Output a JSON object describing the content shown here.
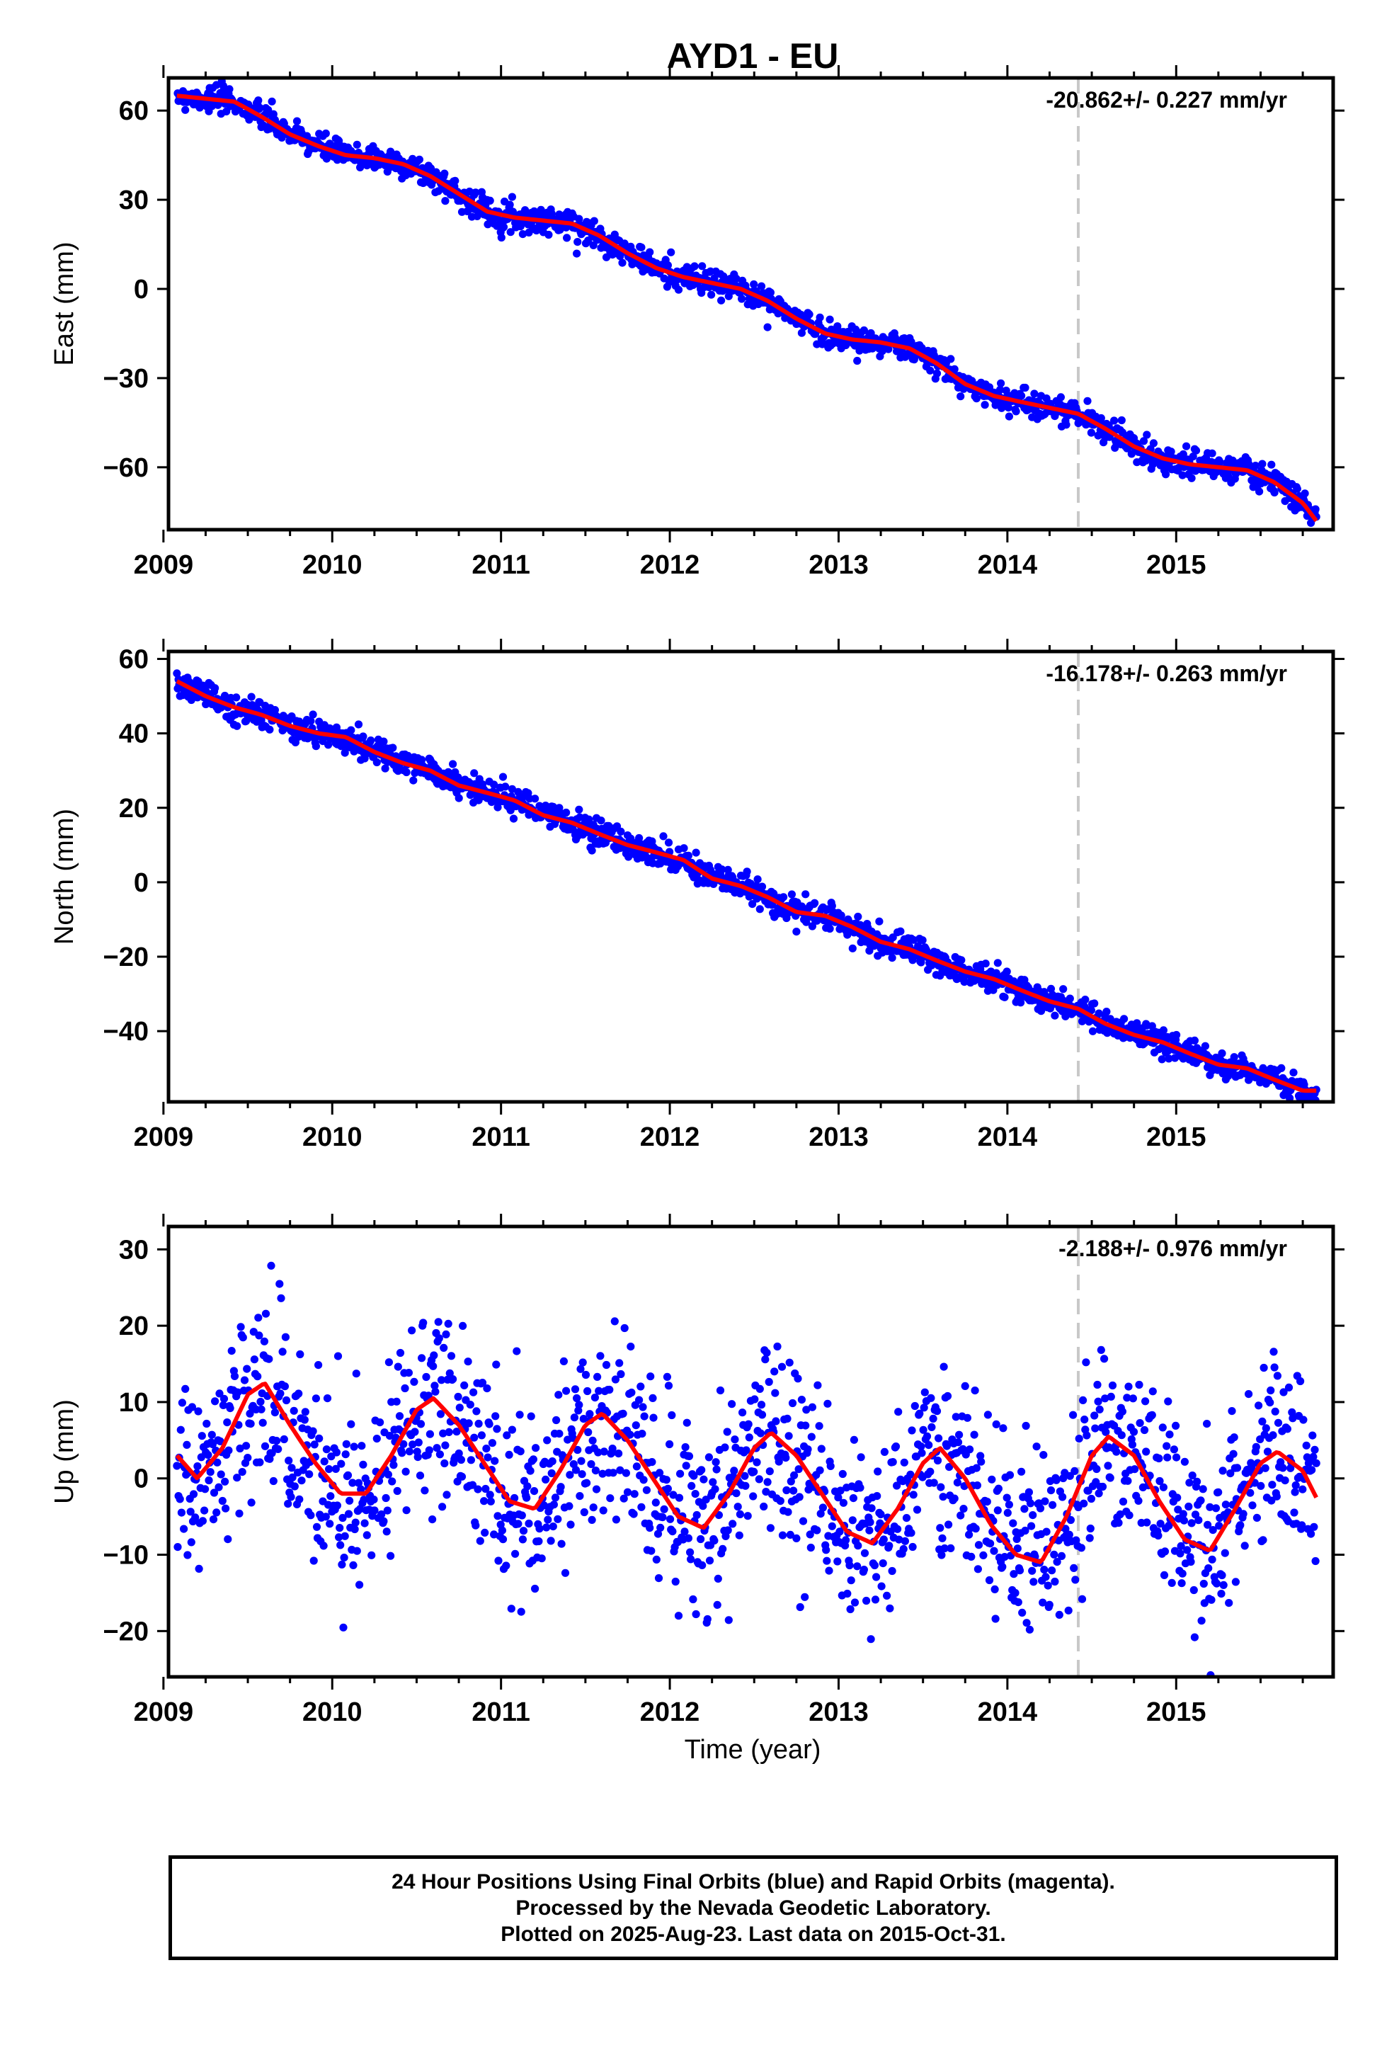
{
  "title": "AYD1 - EU",
  "colors": {
    "points": "#0000ff",
    "fit": "#ff0000",
    "event_line": "#c8c8c8",
    "frame": "#000000"
  },
  "x_axis": {
    "xlabel": "Time (year)",
    "ticks": [
      2009,
      2010,
      2011,
      2012,
      2013,
      2014,
      2015
    ],
    "xlim": [
      2009.03,
      2015.93
    ]
  },
  "event_line_year": 2014.42,
  "footer": {
    "line1": "24 Hour Positions Using Final Orbits (blue) and Rapid Orbits (magenta).",
    "line2": "Processed by the Nevada Geodetic Laboratory.",
    "line3": "Plotted on 2025-Aug-23. Last data on 2015-Oct-31."
  },
  "chart_data": [
    {
      "type": "scatter",
      "component": "east",
      "ylabel": "East (mm)",
      "rate_label": "-20.862+/- 0.227 mm/yr",
      "ylim": [
        -81,
        71
      ],
      "yticks": [
        -60,
        -30,
        0,
        30,
        60
      ],
      "x": [
        2009.08,
        2009.25,
        2009.42,
        2009.58,
        2009.75,
        2009.92,
        2010.08,
        2010.25,
        2010.42,
        2010.58,
        2010.75,
        2010.92,
        2011.08,
        2011.25,
        2011.42,
        2011.58,
        2011.75,
        2011.92,
        2012.08,
        2012.25,
        2012.42,
        2012.58,
        2012.75,
        2012.92,
        2013.08,
        2013.25,
        2013.42,
        2013.58,
        2013.75,
        2013.92,
        2014.08,
        2014.25,
        2014.42,
        2014.58,
        2014.75,
        2014.92,
        2015.08,
        2015.25,
        2015.42,
        2015.58,
        2015.75,
        2015.83
      ],
      "fit": [
        65,
        64,
        63,
        58,
        52,
        48,
        45,
        44,
        42,
        38,
        32,
        26,
        24,
        23,
        22,
        18,
        12,
        7,
        4,
        2,
        0,
        -4,
        -10,
        -15,
        -17,
        -18,
        -20,
        -25,
        -32,
        -36,
        -38,
        -40,
        -42,
        -47,
        -53,
        -57,
        -59,
        -60,
        -61,
        -65,
        -72,
        -78
      ],
      "noise": 2.2
    },
    {
      "type": "scatter",
      "component": "north",
      "ylabel": "North (mm)",
      "rate_label": "-16.178+/- 0.263 mm/yr",
      "ylim": [
        -59,
        62
      ],
      "yticks": [
        -40,
        -20,
        0,
        20,
        40,
        60
      ],
      "x": [
        2009.08,
        2009.25,
        2009.42,
        2009.58,
        2009.75,
        2009.92,
        2010.08,
        2010.25,
        2010.42,
        2010.58,
        2010.75,
        2010.92,
        2011.08,
        2011.25,
        2011.42,
        2011.58,
        2011.75,
        2011.92,
        2012.08,
        2012.25,
        2012.42,
        2012.58,
        2012.75,
        2012.92,
        2013.08,
        2013.25,
        2013.42,
        2013.58,
        2013.75,
        2013.92,
        2014.08,
        2014.25,
        2014.42,
        2014.58,
        2014.75,
        2014.92,
        2015.08,
        2015.25,
        2015.42,
        2015.58,
        2015.75,
        2015.83
      ],
      "fit": [
        54,
        50,
        47,
        45,
        42,
        40,
        39,
        35,
        32,
        30,
        26,
        24,
        22,
        18,
        16,
        13,
        10,
        8,
        6,
        1,
        -1,
        -4,
        -8,
        -9,
        -12,
        -16,
        -18,
        -21,
        -24,
        -26,
        -29,
        -32,
        -34,
        -38,
        -41,
        -43,
        -46,
        -49,
        -50,
        -53,
        -56,
        -56
      ],
      "noise": 1.8
    },
    {
      "type": "scatter",
      "component": "up",
      "ylabel": "Up (mm)",
      "rate_label": "-2.188+/- 0.976 mm/yr",
      "ylim": [
        -26,
        33
      ],
      "yticks": [
        -20,
        -10,
        0,
        10,
        20,
        30
      ],
      "x": [
        2009.08,
        2009.2,
        2009.35,
        2009.5,
        2009.6,
        2009.75,
        2009.9,
        2010.05,
        2010.2,
        2010.35,
        2010.5,
        2010.6,
        2010.75,
        2010.9,
        2011.05,
        2011.2,
        2011.35,
        2011.5,
        2011.6,
        2011.75,
        2011.9,
        2012.05,
        2012.2,
        2012.35,
        2012.5,
        2012.6,
        2012.75,
        2012.9,
        2013.05,
        2013.2,
        2013.35,
        2013.5,
        2013.6,
        2013.75,
        2013.9,
        2014.05,
        2014.2,
        2014.35,
        2014.5,
        2014.6,
        2014.75,
        2014.9,
        2015.05,
        2015.2,
        2015.35,
        2015.5,
        2015.6,
        2015.75,
        2015.83
      ],
      "fit": [
        3,
        0,
        4,
        11,
        12.5,
        7,
        2,
        -2,
        -2,
        3,
        9,
        10.5,
        7,
        2,
        -3,
        -4,
        1,
        7,
        8.5,
        5,
        0,
        -5,
        -6.5,
        -2,
        4,
        6,
        3,
        -2,
        -7,
        -8.5,
        -4,
        2,
        4,
        0,
        -6,
        -10,
        -11,
        -5,
        3,
        5.5,
        3,
        -3,
        -8,
        -9.5,
        -4,
        2,
        3.5,
        1,
        -2.5
      ],
      "noise": 6.0
    }
  ]
}
